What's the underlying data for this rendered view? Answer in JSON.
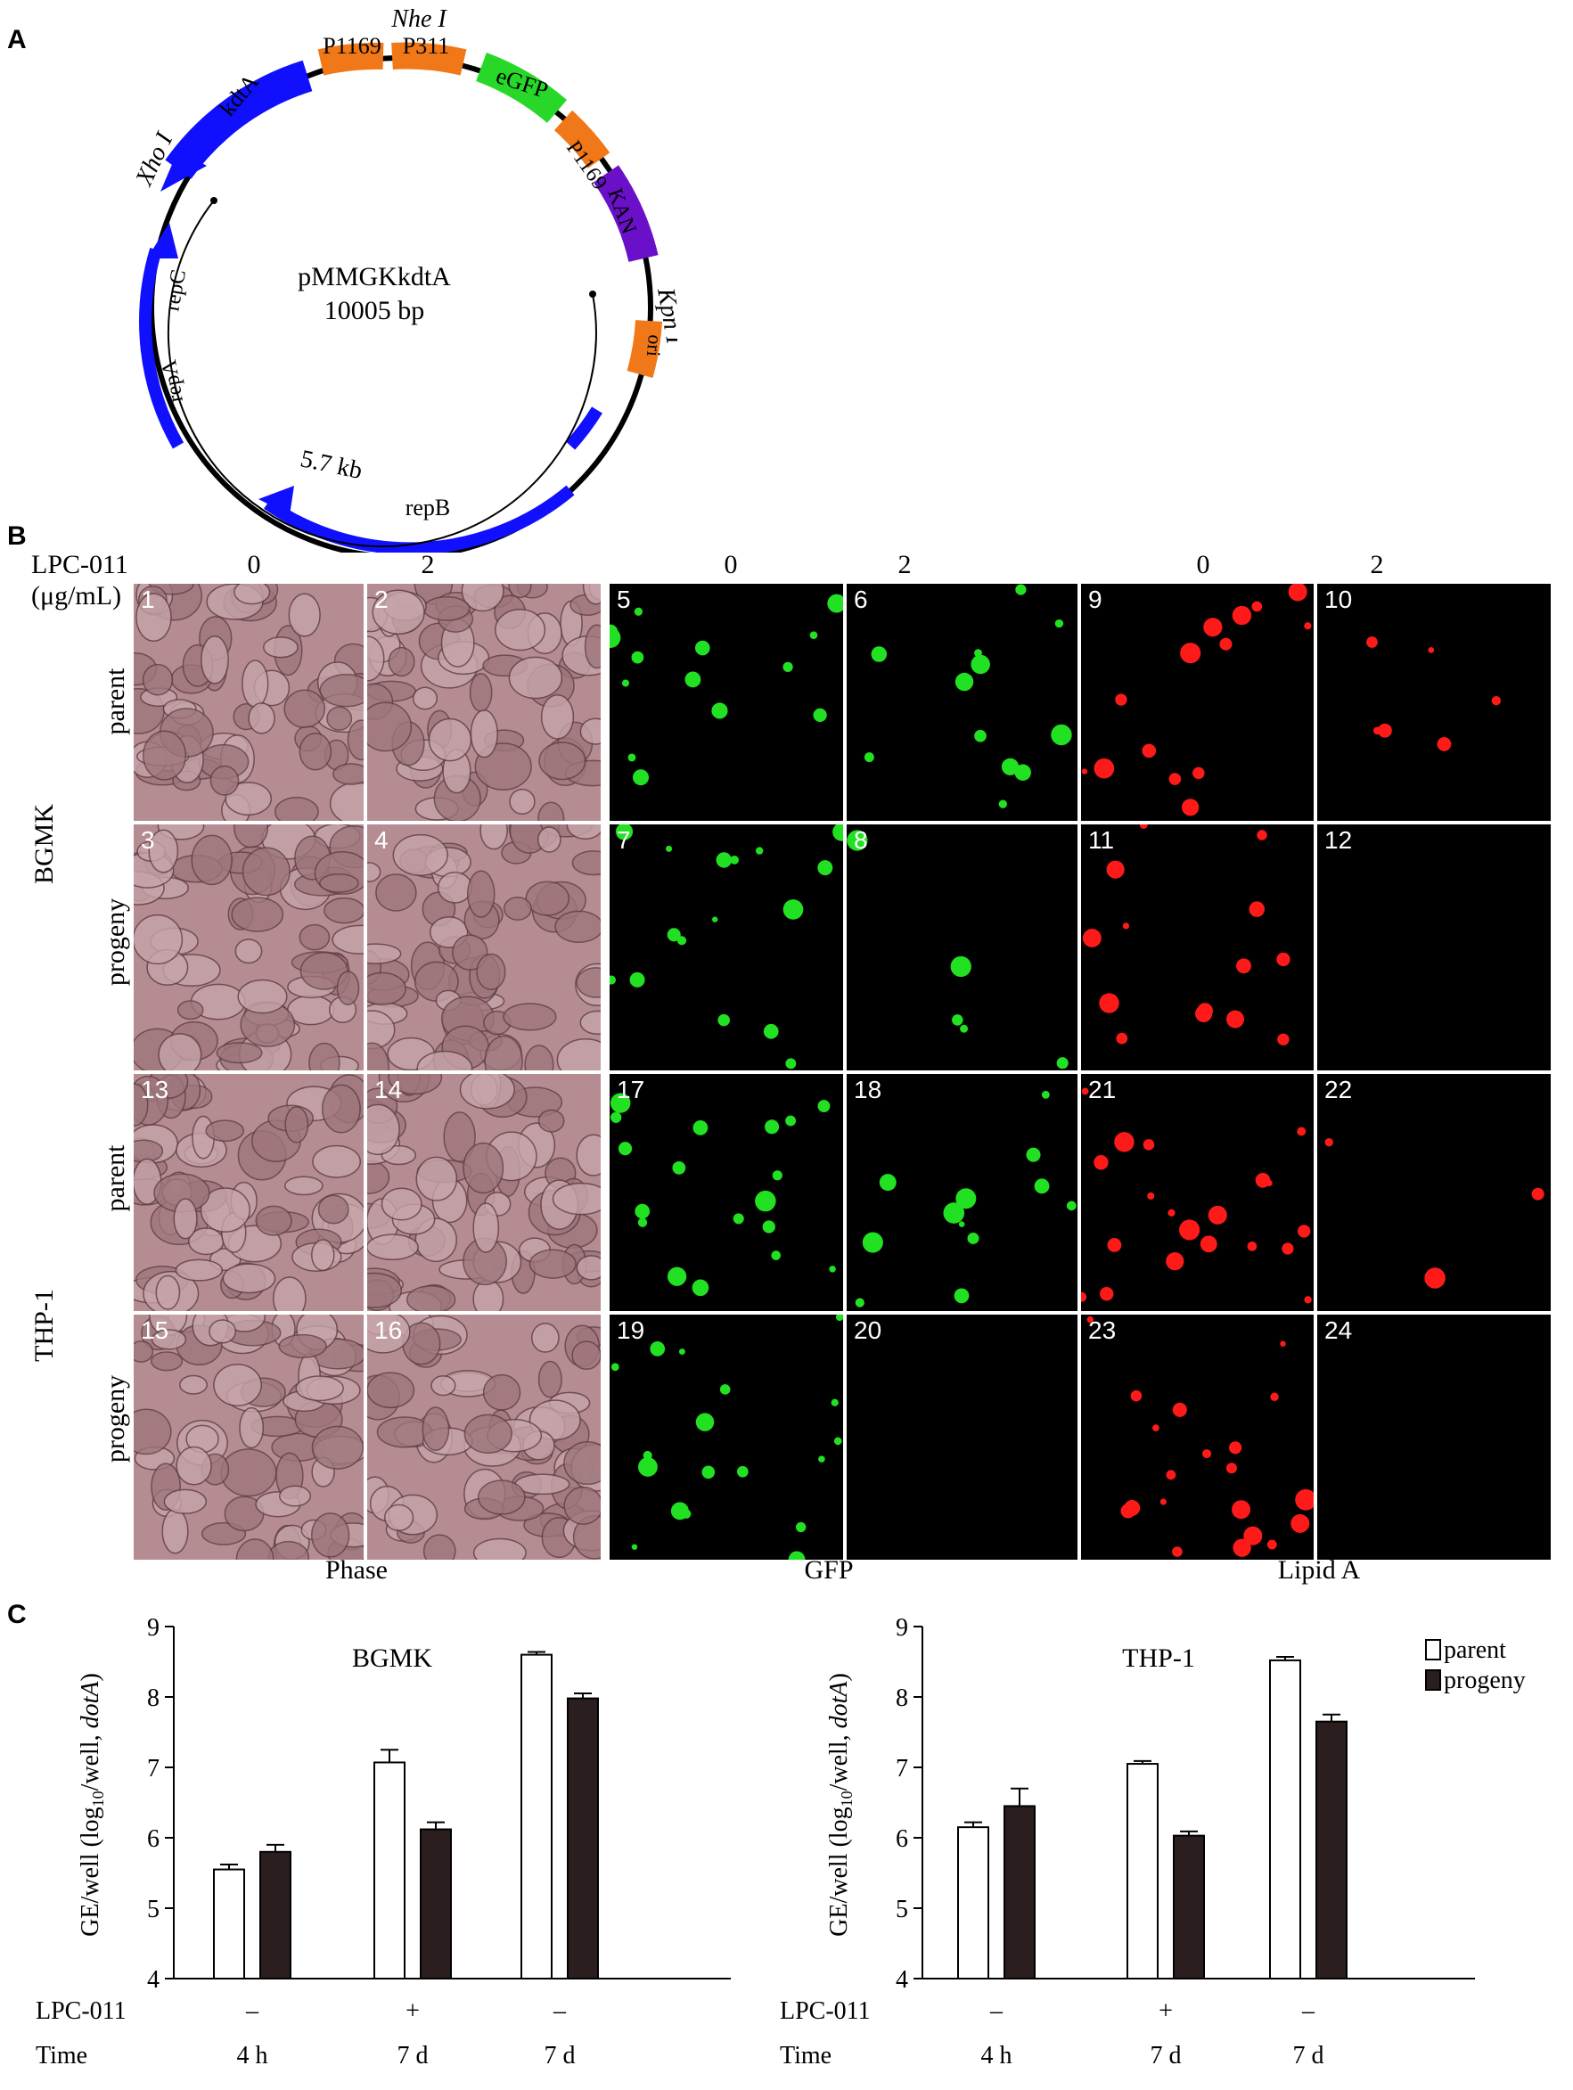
{
  "panels": {
    "a": "A",
    "b": "B",
    "c": "C"
  },
  "plasmid": {
    "name": "pMMGKkdtA",
    "size": "10005 bp",
    "features": [
      "kdtA",
      "P1169",
      "P311",
      "eGFP",
      "P1169",
      "KAN",
      "ori",
      "repC",
      "repA",
      "repB"
    ],
    "sites": [
      "Nhe I",
      "Xho I",
      "Kpn I"
    ],
    "arc_label": "5.7 kb",
    "colors": {
      "kdtA": "#1010ff",
      "promoter": "#f07818",
      "eGFP": "#28d828",
      "KAN": "#6a10c8",
      "rep": "#1010ff"
    }
  },
  "grid": {
    "treatment_label": "LPC-011",
    "treatment_unit": "(μg/mL)",
    "doses": [
      "0",
      "2",
      "0",
      "2",
      "0",
      "2"
    ],
    "cell_lines": [
      "BGMK",
      "THP-1"
    ],
    "strains": [
      "parent",
      "progeny",
      "parent",
      "progeny"
    ],
    "column_groups": [
      "Phase",
      "GFP",
      "Lipid A"
    ],
    "numbers": [
      [
        "1",
        "2",
        "5",
        "6",
        "9",
        "10"
      ],
      [
        "3",
        "4",
        "7",
        "8",
        "11",
        "12"
      ],
      [
        "13",
        "14",
        "17",
        "18",
        "21",
        "22"
      ],
      [
        "15",
        "16",
        "19",
        "20",
        "23",
        "24"
      ]
    ]
  },
  "charts": {
    "row_labels": {
      "treatment": "LPC-011",
      "time": "Time"
    },
    "ylabel_main": "GE/well (log",
    "ylabel_sub": "10",
    "ylabel_rest": "/well, ",
    "ylabel_gene": "dotA",
    "ylabel_close": ")",
    "legend": [
      "parent",
      "progeny"
    ],
    "treatments": [
      "–",
      "+",
      "–"
    ],
    "times": [
      "4 h",
      "7 d",
      "7 d"
    ]
  },
  "chart_data": [
    {
      "type": "bar",
      "title": "BGMK",
      "categories": [
        "4 h",
        "7 d",
        "7 d"
      ],
      "series": [
        {
          "name": "parent",
          "values": [
            5.55,
            7.07,
            8.6
          ],
          "errors": [
            0.07,
            0.18,
            0.04
          ]
        },
        {
          "name": "progeny",
          "values": [
            5.8,
            6.12,
            7.98
          ],
          "errors": [
            0.1,
            0.1,
            0.07
          ]
        }
      ],
      "ylim": [
        4,
        9
      ],
      "yticks": [
        4,
        5,
        6,
        7,
        8,
        9
      ]
    },
    {
      "type": "bar",
      "title": "THP-1",
      "categories": [
        "4 h",
        "7 d",
        "7 d"
      ],
      "series": [
        {
          "name": "parent",
          "values": [
            6.15,
            7.05,
            8.52
          ],
          "errors": [
            0.07,
            0.04,
            0.05
          ]
        },
        {
          "name": "progeny",
          "values": [
            6.45,
            6.03,
            7.65
          ],
          "errors": [
            0.25,
            0.06,
            0.1
          ]
        }
      ],
      "ylim": [
        4,
        9
      ],
      "yticks": [
        4,
        5,
        6,
        7,
        8,
        9
      ]
    }
  ]
}
